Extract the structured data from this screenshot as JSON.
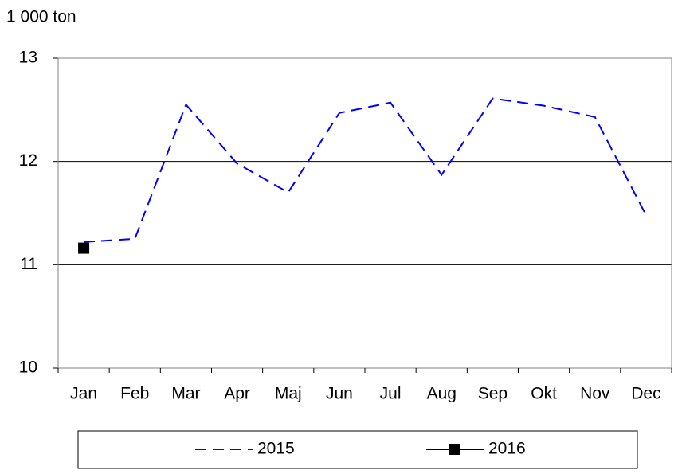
{
  "chart_data": {
    "type": "line",
    "y_axis_label": "1 000 ton",
    "categories": [
      "Jan",
      "Feb",
      "Mar",
      "Apr",
      "Maj",
      "Jun",
      "Jul",
      "Aug",
      "Sep",
      "Okt",
      "Nov",
      "Dec"
    ],
    "series": [
      {
        "name": "2015",
        "color": "#0000ff",
        "dashed": true,
        "marker": false,
        "values": [
          11.22,
          11.25,
          12.55,
          11.98,
          11.7,
          12.47,
          12.57,
          11.87,
          12.61,
          12.54,
          12.43,
          11.48
        ]
      },
      {
        "name": "2016",
        "color": "#000000",
        "dashed": false,
        "marker": true,
        "values": [
          11.16,
          null,
          null,
          null,
          null,
          null,
          null,
          null,
          null,
          null,
          null,
          null
        ]
      }
    ],
    "ylim": [
      10,
      13
    ],
    "yticks": [
      10,
      11,
      12,
      13
    ],
    "grid": true,
    "legend": "bottom"
  }
}
